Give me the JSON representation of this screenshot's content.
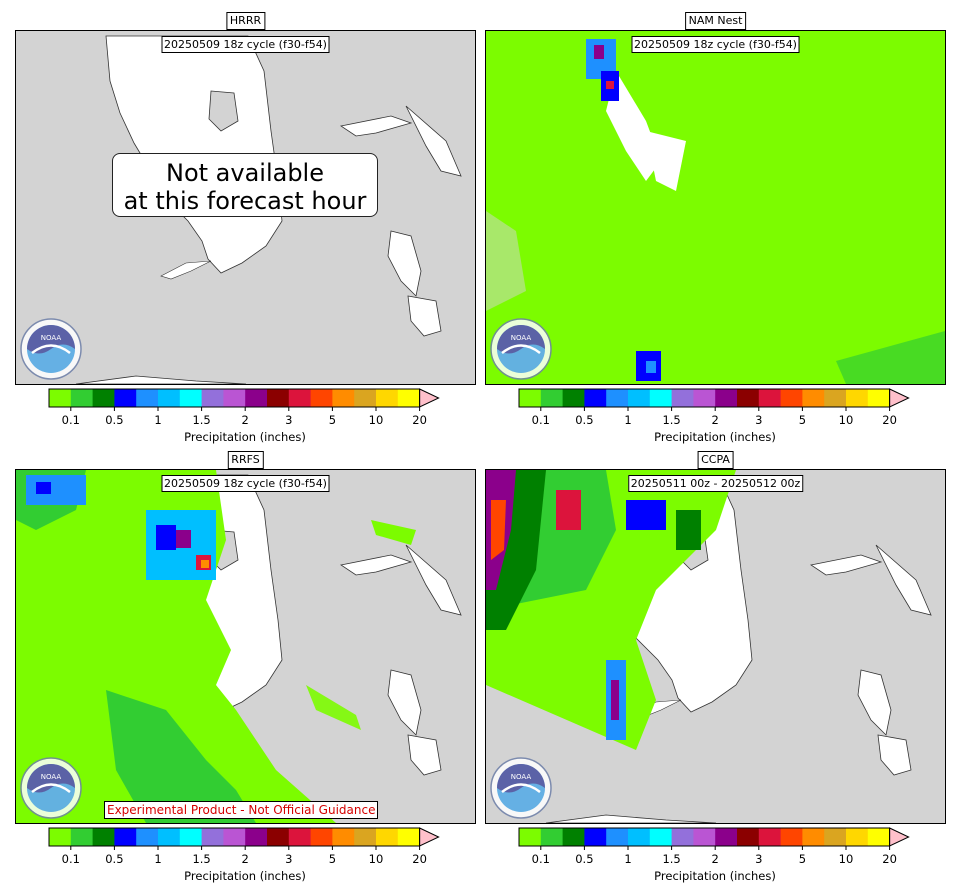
{
  "panels": [
    {
      "title": "HRRR",
      "cycle": "20250509 18z cycle (f30-f54)",
      "notice_line1": "Not available",
      "notice_line2": "at this forecast hour",
      "logo": "NOAA"
    },
    {
      "title": "NAM Nest",
      "cycle": "20250509 18z cycle (f30-f54)",
      "logo": "NOAA"
    },
    {
      "title": "RRFS",
      "cycle": "20250509 18z cycle (f30-f54)",
      "disclaimer": "Experimental Product - Not Official Guidance",
      "logo": "NOAA"
    },
    {
      "title": "CCPA",
      "cycle": "20250511 00z - 20250512 00z",
      "logo": "NOAA"
    }
  ],
  "colorbar": {
    "label": "Precipitation (inches)",
    "ticks": [
      "0.1",
      "0.5",
      "1",
      "1.5",
      "2",
      "3",
      "5",
      "10",
      "20"
    ],
    "colors": [
      "#7cfc00",
      "#32cd32",
      "#008000",
      "#0000ff",
      "#1e90ff",
      "#00bfff",
      "#00ffff",
      "#9370db",
      "#ba55d3",
      "#8b008b",
      "#8b0000",
      "#dc143c",
      "#ff4500",
      "#ff8c00",
      "#daa520",
      "#ffd700",
      "#ffff00"
    ],
    "extend_color": "#ffc0cb"
  },
  "map_colors": {
    "land": "#ffffff",
    "missing": "#d3d3d3"
  }
}
